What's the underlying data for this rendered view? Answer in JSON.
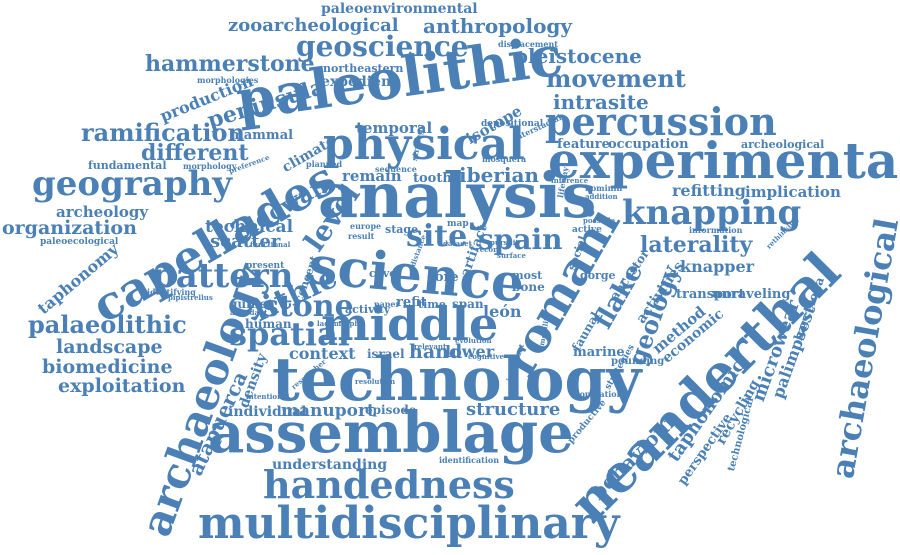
{
  "accent_color": "#4a80b5",
  "words": {
    "paleoenvironmental": "paleoenvironmental",
    "zooarcheological": "zooarcheological",
    "anthropology": "anthropology",
    "displacement": "displacement",
    "geoscience": "geoscience",
    "pleistocene": "pleistocene",
    "hammerstone": "hammerstone",
    "northeastern": "northeastern",
    "morphologies": "morphologies",
    "expedient": "expedient",
    "movement": "movement",
    "peninsula": "peninsula",
    "paleolithic": "paleolithic",
    "production": "production",
    "intrasite": "intrasite",
    "percussion": "percussion",
    "ramification": "ramification",
    "mammal": "mammal",
    "temporal": "temporal",
    "isotope": "isotope",
    "physical": "physical",
    "archeological_small": "archeological",
    "fundamental": "fundamental",
    "different": "different",
    "climate": "climate",
    "feature": "feature",
    "occupation": "occupation",
    "experimental": "experimental",
    "geography": "geography",
    "remain": "remain",
    "tooth": "tooth",
    "iberian": "iberian",
    "refitting": "refitting",
    "implication": "implication",
    "capellades": "capellades",
    "analysis": "analysis",
    "archeology": "archeology",
    "oldowan": "oldowan",
    "knapping": "knapping",
    "organization": "organization",
    "technical": "technical",
    "level": "level",
    "site": "site",
    "spain": "spain",
    "paleoecological": "paleoecological",
    "scatter": "scatter",
    "laterality": "laterality",
    "taphonomy": "taphonomy",
    "science": "science",
    "knapper": "knapper",
    "pattern": "pattern",
    "lithic": "lithic",
    "romani": "romani",
    "archaeological": "archaeological",
    "geology": "geology",
    "flake": "flake",
    "unraveling": "unraveling",
    "stone": "stone",
    "transport": "transport",
    "palaeolithic": "palaeolithic",
    "middle": "middle",
    "spatial": "spatial",
    "guinea": "guinea",
    "refit": "refit",
    "span": "span",
    "leon": "león",
    "method": "method",
    "barcelona": "barcelona",
    "landscape": "landscape",
    "human": "human",
    "economic": "economic",
    "neanderthal": "neanderthal",
    "context": "context",
    "hand": "hand",
    "lower": "lower",
    "biomedicine": "biomedicine",
    "israel": "israel",
    "marine": "marine",
    "palimpsest": "palimpsest",
    "microwear": "microwear",
    "exploitation": "exploitation",
    "archaeology": "archaeology",
    "technology": "technology",
    "taphonomic": "taphonomic",
    "recycling": "recycling",
    "atapuerca": "atapuerca",
    "density": "density",
    "individual": "individual",
    "manuport": "manuport",
    "episode": "episode",
    "structure": "structure",
    "assemblage": "assemblage",
    "behaviour": "behaviour",
    "perspective": "perspective",
    "technological": "technological",
    "understanding": "understanding",
    "handedness": "handedness",
    "multidisciplinary": "multidisciplinary",
    "artifact": "artifact",
    "faunal": "faunal",
    "activities": "activities",
    "social": "social",
    "ancestor": "ancestor",
    "activity": "activity",
    "concept": "concept",
    "stage": "stage",
    "cave": "cave",
    "core": "core",
    "bone": "bone",
    "most": "most",
    "time": "time",
    "map": "map",
    "gorge": "gorge",
    "record": "record",
    "identification": "identification",
    "population": "population",
    "productive": "productive",
    "pounding": "pounding",
    "strategies": "strategies",
    "resolution": "resolution",
    "intentional": "intentional",
    "identifying": "identifying",
    "pipistrellus": "pipistrellus",
    "present": "present",
    "paper": "paper",
    "relevant": "relevant",
    "cognitive": "cognitive",
    "active": "active",
    "addition": "addition",
    "information": "information",
    "rethinking": "rethinking",
    "preference": "preference",
    "planned": "planned",
    "morphology": "morphology",
    "sequence": "sequence",
    "mosquera": "mosquera",
    "depositional": "depositional",
    "interstadial": "interstadial",
    "hominin": "hominin",
    "lifeway": "lifeway",
    "europe": "europe",
    "result": "result",
    "possible": "possible",
    "evolution": "evolution",
    "functional": "functional",
    "abundant": "abundant",
    "researcher": "researcher",
    "mobility": "mobility",
    "surface": "surface",
    "inference": "inference",
    "pursuit": "pursuit",
    "dataset": "dataset",
    "distance": "distance",
    "lagomorph": "lagomorph",
    "important": "important",
    "strategy": "strategy"
  }
}
